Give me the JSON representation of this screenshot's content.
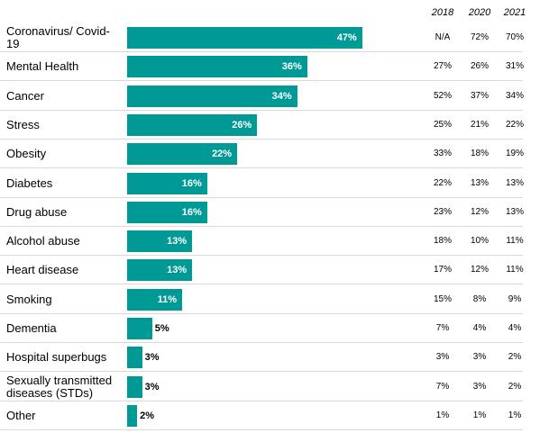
{
  "chart_data": {
    "type": "bar",
    "orientation": "horizontal",
    "xlim": [
      0,
      100
    ],
    "grid": false,
    "year_headers": [
      "2018",
      "2020",
      "2021"
    ],
    "categories": [
      "Coronavirus/ Covid-19",
      "Mental Health",
      "Cancer",
      "Stress",
      "Obesity",
      "Diabetes",
      "Drug abuse",
      "Alcohol abuse",
      "Heart disease",
      "Smoking",
      "Dementia",
      "Hospital superbugs",
      "Sexually transmitted diseases (STDs)",
      "Other"
    ],
    "values": [
      47,
      36,
      34,
      26,
      22,
      16,
      16,
      13,
      13,
      11,
      5,
      3,
      3,
      2
    ],
    "value_labels": [
      "47%",
      "36%",
      "34%",
      "26%",
      "22%",
      "16%",
      "16%",
      "13%",
      "13%",
      "11%",
      "5%",
      "3%",
      "3%",
      "2%"
    ],
    "table": [
      [
        "N/A",
        "72%",
        "70%"
      ],
      [
        "27%",
        "26%",
        "31%"
      ],
      [
        "52%",
        "37%",
        "34%"
      ],
      [
        "25%",
        "21%",
        "22%"
      ],
      [
        "33%",
        "18%",
        "19%"
      ],
      [
        "22%",
        "13%",
        "13%"
      ],
      [
        "23%",
        "12%",
        "13%"
      ],
      [
        "18%",
        "10%",
        "11%"
      ],
      [
        "17%",
        "12%",
        "11%"
      ],
      [
        "15%",
        "8%",
        "9%"
      ],
      [
        "7%",
        "4%",
        "4%"
      ],
      [
        "3%",
        "3%",
        "2%"
      ],
      [
        "7%",
        "3%",
        "2%"
      ],
      [
        "1%",
        "1%",
        "1%"
      ]
    ],
    "colors": {
      "bar": "#009a96",
      "separator": "#d9d9d9"
    }
  }
}
